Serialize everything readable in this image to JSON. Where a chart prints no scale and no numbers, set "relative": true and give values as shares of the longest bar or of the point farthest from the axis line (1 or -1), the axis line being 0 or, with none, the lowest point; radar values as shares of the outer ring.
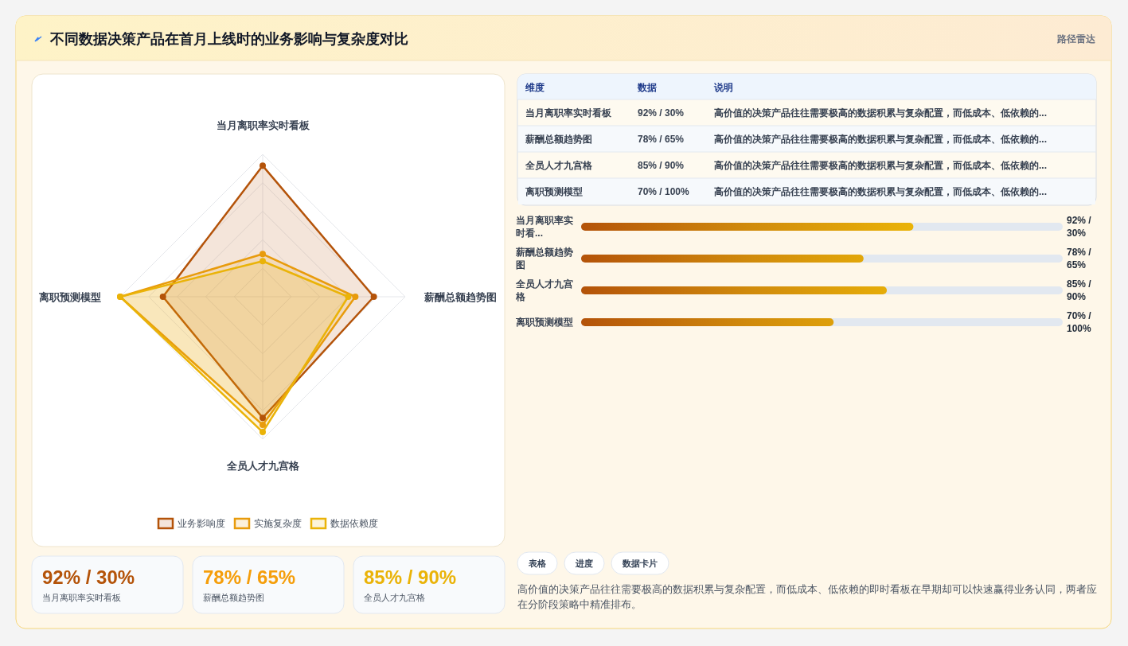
{
  "chart_data": [
    {
      "type": "other",
      "title": "不同数据决策产品在首月上线时的业务影响与复杂度对比",
      "subtitle": "路径雷达"
    },
    {
      "type": "radar",
      "categories": [
        "当月离职率实时看板",
        "薪酬总额趋势图",
        "全员人才九宫格",
        "离职预测模型"
      ],
      "relative": true,
      "legend": "bottom",
      "marker": "circle",
      "series": [
        {
          "name": "业务影响度",
          "color": "#b45309",
          "values": [
            0.92,
            0.78,
            0.85,
            0.7
          ]
        },
        {
          "name": "实施复杂度",
          "color": "#e89b0c",
          "values": [
            0.3,
            0.65,
            0.9,
            1.0
          ]
        },
        {
          "name": "数据依赖度",
          "color": "#eab308",
          "values": [
            0.25,
            0.6,
            0.95,
            1.0
          ]
        }
      ]
    },
    {
      "type": "other",
      "categories": [
        "当月离职率实时看板",
        "薪酬总额趋势图",
        "全员人才九宫格",
        "离职预测模型"
      ],
      "annotations": [
        "维度",
        "数据",
        "说明",
        "92% / 30%",
        "高价值的决策产品往往需要极高的数据积累与复杂配置，而低成本、低依赖的...",
        "78% / 65%",
        "高价值的决策产品往往需要极高的数据积累与复杂配置，而低成本、低依赖的...",
        "85% / 90%",
        "高价值的决策产品往往需要极高的数据积累与复杂配置，而低成本、低依赖的...",
        "70% / 100%",
        "高价值的决策产品往往需要极高的数据积累与复杂配置，而低成本、低依赖的..."
      ]
    },
    {
      "type": "bar",
      "orientation": "horizontal",
      "relative": true,
      "categories": [
        "当月离职率实时看...",
        "薪酬总额趋势图",
        "全员人才九宫格",
        "离职预测模型"
      ],
      "series": [
        {
          "color": "#d08a0c",
          "values": [
            1,
            0.85,
            0.92,
            0.76
          ]
        }
      ],
      "value_labels": [
        "92% / 30%",
        "78% / 65%",
        "85% / 90%",
        "70% / 100%"
      ]
    },
    {
      "type": "other",
      "colors": [
        "#b45309",
        "#f59e0b",
        "#eab308"
      ],
      "annotations": [
        "92% / 30%",
        "当月离职率实时看板",
        "78% / 65%",
        "薪酬总额趋势图",
        "85% / 90%",
        "全员人才九宫格"
      ]
    },
    {
      "type": "other",
      "annotations": [
        "表格",
        "进度",
        "数据卡片",
        "高价值的决策产品往往需要极高的数据积累与复杂配置，而低成本、低依赖的即时看板在早期却可以快速赢得业务认同，两者应在分阶段策略中精准排布。"
      ]
    }
  ]
}
